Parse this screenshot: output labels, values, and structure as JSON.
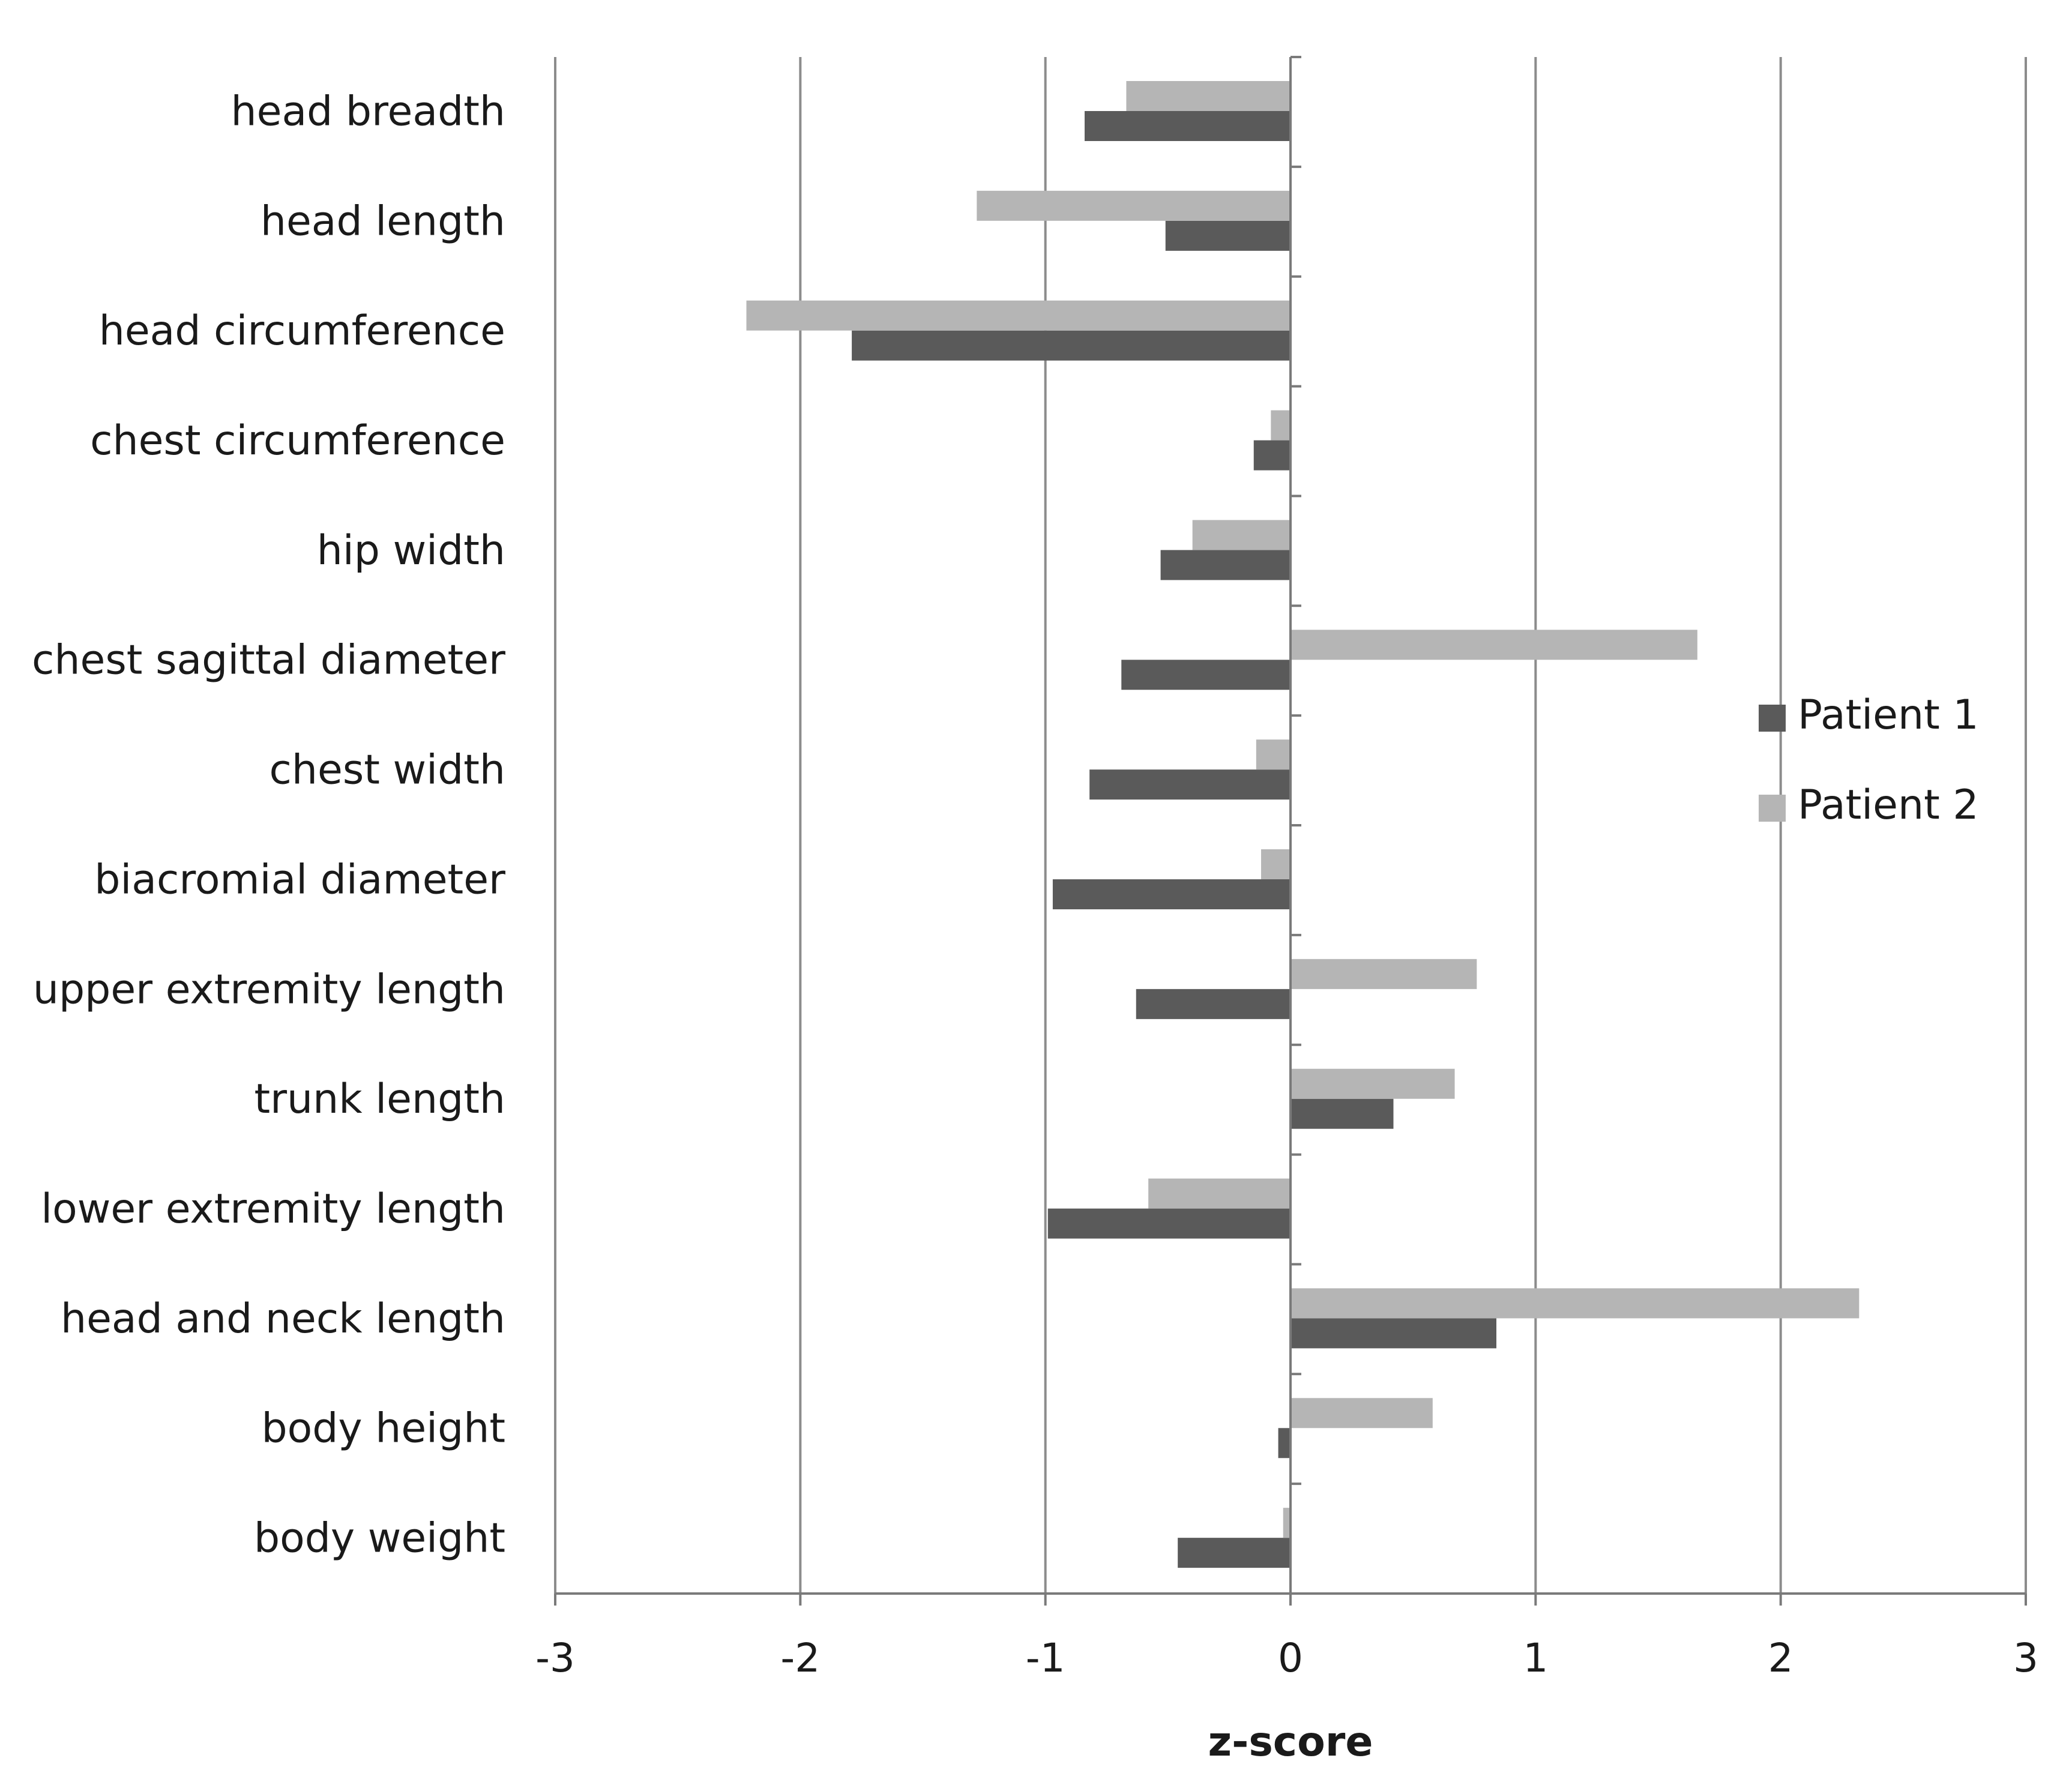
{
  "chart_data": {
    "type": "bar",
    "orientation": "horizontal",
    "title": "",
    "xlabel": "z-score",
    "ylabel": "",
    "xlim": [
      -3,
      3
    ],
    "xticks": [
      -3,
      -2,
      -1,
      0,
      1,
      2,
      3
    ],
    "xtick_labels": [
      "-3",
      "-2",
      "-1",
      "0",
      "1",
      "2",
      "3"
    ],
    "grid": true,
    "legend_position": "right",
    "categories": [
      "head breadth",
      "head length",
      "head circumference",
      "chest circumference",
      "hip width",
      "chest sagittal diameter",
      "chest width",
      "biacromial diameter",
      "upper extremity length",
      "trunk length",
      "lower extremity length",
      "head and neck length",
      "body height",
      "body weight"
    ],
    "series": [
      {
        "name": "Patient  1",
        "color": "#5a5a5a",
        "values": [
          -0.84,
          -0.51,
          -1.79,
          -0.15,
          -0.53,
          -0.69,
          -0.82,
          -0.97,
          -0.63,
          0.42,
          -0.99,
          0.84,
          -0.05,
          -0.46
        ]
      },
      {
        "name": "Patient  2",
        "color": "#b5b5b5",
        "values": [
          -0.67,
          -1.28,
          -2.22,
          -0.08,
          -0.4,
          1.66,
          -0.14,
          -0.12,
          0.76,
          0.67,
          -0.58,
          2.32,
          0.58,
          -0.03
        ]
      }
    ]
  }
}
